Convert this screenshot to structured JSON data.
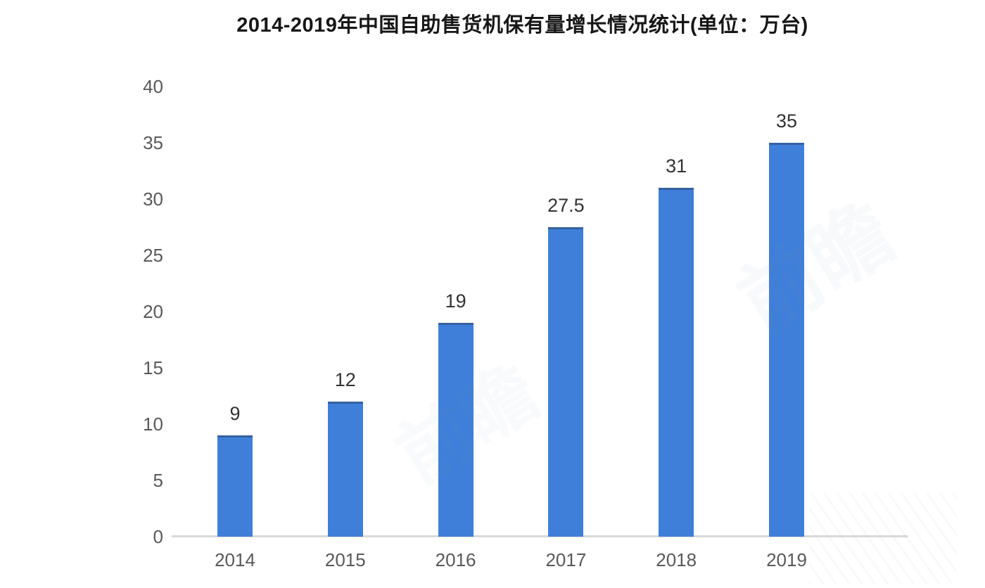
{
  "chart": {
    "title": "2014-2019年中国自助售货机保有量增长情况统计(单位：万台)"
  },
  "chart_data": {
    "type": "bar",
    "title": "2014-2019年中国自助售货机保有量增长情况统计(单位：万台)",
    "unit": "万台",
    "categories": [
      "2014",
      "2015",
      "2016",
      "2017",
      "2018",
      "2019"
    ],
    "values": [
      9,
      12,
      19,
      27.5,
      31,
      35
    ],
    "value_labels": [
      "9",
      "12",
      "19",
      "27.5",
      "31",
      "35"
    ],
    "xlabel": "",
    "ylabel": "",
    "ylim": [
      0,
      40
    ],
    "yticks": [
      0,
      5,
      10,
      15,
      20,
      25,
      30,
      35,
      40
    ],
    "grid": false,
    "legend_position": "none",
    "bar_color": "#3F7FD9",
    "axis_line_color": "#D9D9D9",
    "tick_label_color": "#595959",
    "value_label_color": "#333333",
    "title_color": "#171717"
  },
  "watermark": {
    "text": "前瞻",
    "color": "#7F9EBF"
  }
}
